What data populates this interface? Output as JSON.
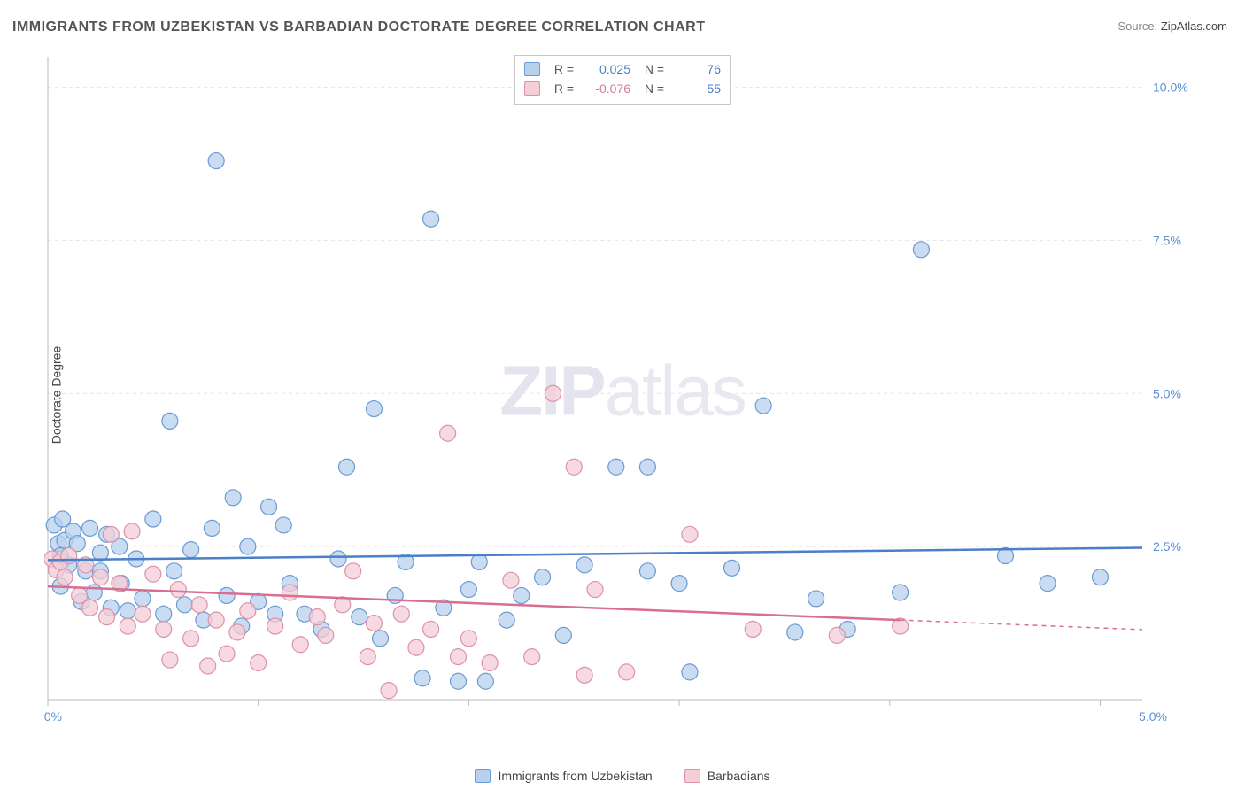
{
  "title": "IMMIGRANTS FROM UZBEKISTAN VS BARBADIAN DOCTORATE DEGREE CORRELATION CHART",
  "source_label": "Source:",
  "source_value": "ZipAtlas.com",
  "watermark_zip": "ZIP",
  "watermark_atlas": "atlas",
  "y_axis_label": "Doctorate Degree",
  "chart": {
    "type": "scatter",
    "xlim": [
      0,
      5.2
    ],
    "ylim": [
      0,
      10.5
    ],
    "x_ticks": [
      0,
      1,
      2,
      3,
      4,
      5
    ],
    "x_tick_labels": [
      "0.0%",
      "",
      "",
      "",
      "",
      "5.0%"
    ],
    "y_ticks": [
      2.5,
      5.0,
      7.5,
      10.0
    ],
    "y_tick_labels": [
      "2.5%",
      "5.0%",
      "7.5%",
      "10.0%"
    ],
    "grid_color": "#e5e5e5",
    "axis_color": "#bbbbbb",
    "background": "#ffffff",
    "marker_radius": 9,
    "marker_stroke_width": 1.2,
    "series": [
      {
        "key": "uzbek",
        "label": "Immigrants from Uzbekistan",
        "fill": "#b8d0ec",
        "stroke": "#6a9bd4",
        "trend": {
          "y_start": 2.28,
          "y_end": 2.48,
          "color": "#4a7fc9",
          "x_start": 0,
          "x_end": 5.2
        },
        "stats": {
          "R": "0.025",
          "N": "76"
        },
        "points": [
          [
            0.03,
            2.85
          ],
          [
            0.05,
            2.55
          ],
          [
            0.07,
            2.95
          ],
          [
            0.06,
            2.35
          ],
          [
            0.08,
            2.6
          ],
          [
            0.06,
            1.85
          ],
          [
            0.12,
            2.75
          ],
          [
            0.1,
            2.2
          ],
          [
            0.14,
            2.55
          ],
          [
            0.16,
            1.6
          ],
          [
            0.18,
            2.1
          ],
          [
            0.2,
            2.8
          ],
          [
            0.22,
            1.75
          ],
          [
            0.25,
            2.4
          ],
          [
            0.25,
            2.1
          ],
          [
            0.28,
            2.7
          ],
          [
            0.3,
            1.5
          ],
          [
            0.34,
            2.5
          ],
          [
            0.35,
            1.9
          ],
          [
            0.38,
            1.45
          ],
          [
            0.42,
            2.3
          ],
          [
            0.45,
            1.65
          ],
          [
            0.5,
            2.95
          ],
          [
            0.55,
            1.4
          ],
          [
            0.58,
            4.55
          ],
          [
            0.6,
            2.1
          ],
          [
            0.65,
            1.55
          ],
          [
            0.68,
            2.45
          ],
          [
            0.74,
            1.3
          ],
          [
            0.78,
            2.8
          ],
          [
            0.8,
            8.8
          ],
          [
            0.85,
            1.7
          ],
          [
            0.88,
            3.3
          ],
          [
            0.92,
            1.2
          ],
          [
            0.95,
            2.5
          ],
          [
            1.0,
            1.6
          ],
          [
            1.05,
            3.15
          ],
          [
            1.08,
            1.4
          ],
          [
            1.12,
            2.85
          ],
          [
            1.15,
            1.9
          ],
          [
            1.22,
            1.4
          ],
          [
            1.3,
            1.15
          ],
          [
            1.38,
            2.3
          ],
          [
            1.42,
            3.8
          ],
          [
            1.48,
            1.35
          ],
          [
            1.55,
            4.75
          ],
          [
            1.58,
            1.0
          ],
          [
            1.65,
            1.7
          ],
          [
            1.7,
            2.25
          ],
          [
            1.78,
            0.35
          ],
          [
            1.82,
            7.85
          ],
          [
            1.88,
            1.5
          ],
          [
            1.95,
            0.3
          ],
          [
            2.0,
            1.8
          ],
          [
            2.05,
            2.25
          ],
          [
            2.08,
            0.3
          ],
          [
            2.18,
            1.3
          ],
          [
            2.25,
            1.7
          ],
          [
            2.35,
            2.0
          ],
          [
            2.45,
            1.05
          ],
          [
            2.55,
            2.2
          ],
          [
            2.7,
            3.8
          ],
          [
            2.85,
            3.8
          ],
          [
            2.85,
            2.1
          ],
          [
            3.0,
            1.9
          ],
          [
            3.05,
            0.45
          ],
          [
            3.25,
            2.15
          ],
          [
            3.4,
            4.8
          ],
          [
            3.55,
            1.1
          ],
          [
            3.65,
            1.65
          ],
          [
            3.8,
            1.15
          ],
          [
            4.05,
            1.75
          ],
          [
            4.15,
            7.35
          ],
          [
            4.55,
            2.35
          ],
          [
            4.75,
            1.9
          ],
          [
            5.0,
            2.0
          ]
        ]
      },
      {
        "key": "barb",
        "label": "Barbadians",
        "fill": "#f4cdd7",
        "stroke": "#dc92a8",
        "trend": {
          "y_start": 1.85,
          "y_end": 1.3,
          "color": "#d86f92",
          "x_start": 0,
          "x_end": 4.05,
          "dash_after_x": 4.05,
          "dash_end_x": 5.2
        },
        "stats": {
          "R": "-0.076",
          "N": "55"
        },
        "points": [
          [
            0.02,
            2.3
          ],
          [
            0.04,
            2.12
          ],
          [
            0.06,
            2.25
          ],
          [
            0.08,
            2.0
          ],
          [
            0.1,
            2.35
          ],
          [
            0.15,
            1.7
          ],
          [
            0.18,
            2.2
          ],
          [
            0.2,
            1.5
          ],
          [
            0.25,
            2.0
          ],
          [
            0.28,
            1.35
          ],
          [
            0.3,
            2.7
          ],
          [
            0.34,
            1.9
          ],
          [
            0.38,
            1.2
          ],
          [
            0.4,
            2.75
          ],
          [
            0.45,
            1.4
          ],
          [
            0.5,
            2.05
          ],
          [
            0.55,
            1.15
          ],
          [
            0.58,
            0.65
          ],
          [
            0.62,
            1.8
          ],
          [
            0.68,
            1.0
          ],
          [
            0.72,
            1.55
          ],
          [
            0.76,
            0.55
          ],
          [
            0.8,
            1.3
          ],
          [
            0.85,
            0.75
          ],
          [
            0.9,
            1.1
          ],
          [
            0.95,
            1.45
          ],
          [
            1.0,
            0.6
          ],
          [
            1.08,
            1.2
          ],
          [
            1.15,
            1.75
          ],
          [
            1.2,
            0.9
          ],
          [
            1.28,
            1.35
          ],
          [
            1.32,
            1.05
          ],
          [
            1.4,
            1.55
          ],
          [
            1.45,
            2.1
          ],
          [
            1.52,
            0.7
          ],
          [
            1.55,
            1.25
          ],
          [
            1.62,
            0.15
          ],
          [
            1.68,
            1.4
          ],
          [
            1.75,
            0.85
          ],
          [
            1.82,
            1.15
          ],
          [
            1.9,
            4.35
          ],
          [
            1.95,
            0.7
          ],
          [
            2.0,
            1.0
          ],
          [
            2.1,
            0.6
          ],
          [
            2.2,
            1.95
          ],
          [
            2.3,
            0.7
          ],
          [
            2.4,
            5.0
          ],
          [
            2.5,
            3.8
          ],
          [
            2.55,
            0.4
          ],
          [
            2.6,
            1.8
          ],
          [
            2.75,
            0.45
          ],
          [
            3.05,
            2.7
          ],
          [
            3.35,
            1.15
          ],
          [
            3.75,
            1.05
          ],
          [
            4.05,
            1.2
          ]
        ]
      }
    ]
  },
  "stat_box": {
    "rows": [
      {
        "swatch_fill": "#b8d0ec",
        "swatch_stroke": "#6a9bd4",
        "R_label": "R =",
        "R_val": "0.025",
        "R_class": "blue-text",
        "N_label": "N =",
        "N_val": "76"
      },
      {
        "swatch_fill": "#f4cdd7",
        "swatch_stroke": "#dc92a8",
        "R_label": "R =",
        "R_val": "-0.076",
        "R_class": "pink-text",
        "N_label": "N =",
        "N_val": "55"
      }
    ]
  },
  "bottom_legend": [
    {
      "swatch_fill": "#b8d0ec",
      "swatch_stroke": "#6a9bd4",
      "label": "Immigrants from Uzbekistan"
    },
    {
      "swatch_fill": "#f4cdd7",
      "swatch_stroke": "#dc92a8",
      "label": "Barbadians"
    }
  ]
}
